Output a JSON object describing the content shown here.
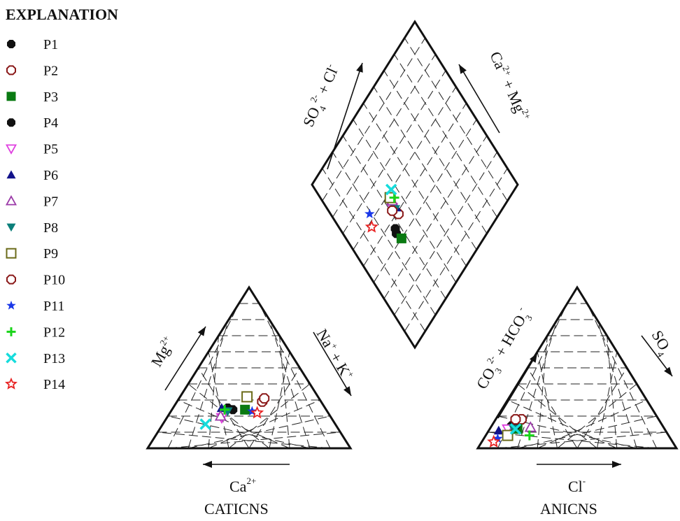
{
  "chart_data": {
    "type": "scatter",
    "chart_kind": "Piper trilinear diagram",
    "legend": {
      "title": "EXPLANATION",
      "placement": "top-left"
    },
    "series": [
      {
        "name": "P1",
        "marker": "octagon-filled",
        "color": "#111111"
      },
      {
        "name": "P2",
        "marker": "octagon-open",
        "color": "#8b1a1a"
      },
      {
        "name": "P3",
        "marker": "square-filled",
        "color": "#0a7a12"
      },
      {
        "name": "P4",
        "marker": "octagon-filled",
        "color": "#111111"
      },
      {
        "name": "P5",
        "marker": "triangle-down-open",
        "color": "#e040e0"
      },
      {
        "name": "P6",
        "marker": "triangle-up-filled",
        "color": "#12128a"
      },
      {
        "name": "P7",
        "marker": "triangle-up-open",
        "color": "#9b3aa8"
      },
      {
        "name": "P8",
        "marker": "triangle-down-filled",
        "color": "#0b7f7a"
      },
      {
        "name": "P9",
        "marker": "square-open",
        "color": "#6b6b1a"
      },
      {
        "name": "P10",
        "marker": "octagon-open",
        "color": "#8b1a1a"
      },
      {
        "name": "P11",
        "marker": "star-filled",
        "color": "#1a38e8"
      },
      {
        "name": "P12",
        "marker": "plus",
        "color": "#1ad41a"
      },
      {
        "name": "P13",
        "marker": "x",
        "color": "#16dcdc"
      },
      {
        "name": "P14",
        "marker": "star-open",
        "color": "#e82222"
      }
    ],
    "cation_triangle": {
      "label_ca": "Ca",
      "label_ca_sup": "2+",
      "label_mg": "Mg",
      "label_mg_sup": "2+",
      "label_na": "Na",
      "label_na_sup": "+",
      "label_k": "+ K",
      "label_k_sup": "+",
      "group_label": "CATICNS",
      "points_mg_na": [
        {
          "series": "P1",
          "mg": 24,
          "na": 30
        },
        {
          "series": "P2",
          "mg": 29,
          "na": 42
        },
        {
          "series": "P3",
          "mg": 24,
          "na": 36
        },
        {
          "series": "P4",
          "mg": 25,
          "na": 27
        },
        {
          "series": "P5",
          "mg": 19,
          "na": 27
        },
        {
          "series": "P6",
          "mg": 25,
          "na": 24
        },
        {
          "series": "P7",
          "mg": 20,
          "na": 26
        },
        {
          "series": "P8",
          "mg": 23,
          "na": 28
        },
        {
          "series": "P9",
          "mg": 32,
          "na": 33
        },
        {
          "series": "P10",
          "mg": 31,
          "na": 42
        },
        {
          "series": "P11",
          "mg": 23,
          "na": 40
        },
        {
          "series": "P12",
          "mg": 24,
          "na": 26
        },
        {
          "series": "P13",
          "mg": 15,
          "na": 21
        },
        {
          "series": "P14",
          "mg": 22,
          "na": 43
        }
      ]
    },
    "anion_triangle": {
      "label_cl": "Cl",
      "label_cl_sup": "-",
      "label_co3": "CO",
      "label_co3_sub": "3",
      "label_co3_sup": "2-",
      "label_hco3": "+ HCO",
      "label_hco3_sub": "3",
      "label_hco3_sup": "-",
      "label_so4": "SO",
      "label_so4_sub": "4",
      "group_label": "ANICNS",
      "points_so4_cl": [
        {
          "series": "P1",
          "so4": 14,
          "cl": 10
        },
        {
          "series": "P2",
          "so4": 18,
          "cl": 13
        },
        {
          "series": "P3",
          "so4": 12,
          "cl": 14
        },
        {
          "series": "P4",
          "so4": 14,
          "cl": 12
        },
        {
          "series": "P5",
          "so4": 12,
          "cl": 9
        },
        {
          "series": "P6",
          "so4": 11,
          "cl": 5
        },
        {
          "series": "P7",
          "so4": 13,
          "cl": 20
        },
        {
          "series": "P8",
          "so4": 12,
          "cl": 12
        },
        {
          "series": "P9",
          "so4": 8,
          "cl": 11
        },
        {
          "series": "P10",
          "so4": 18,
          "cl": 10
        },
        {
          "series": "P11",
          "so4": 6,
          "cl": 7
        },
        {
          "series": "P12",
          "so4": 8,
          "cl": 22
        },
        {
          "series": "P13",
          "so4": 12,
          "cl": 13
        },
        {
          "series": "P14",
          "so4": 4,
          "cl": 6
        }
      ]
    },
    "diamond": {
      "label_left": "SO",
      "label_left_sub": "4",
      "label_left_sup": "2-",
      "label_left_b": "+ Cl",
      "label_left_b_sup": "-",
      "label_right": "Ca",
      "label_right_sup": "2+",
      "label_right_b": "+ Mg",
      "label_right_b_sup": "2+",
      "points_so4cl_camg": [
        {
          "series": "P1",
          "u": 26,
          "v": 44
        },
        {
          "series": "P2",
          "u": 33,
          "v": 49
        },
        {
          "series": "P3",
          "u": 27,
          "v": 40
        },
        {
          "series": "P4",
          "u": 27,
          "v": 46
        },
        {
          "series": "P5",
          "u": 32,
          "v": 54
        },
        {
          "series": "P6",
          "u": 34,
          "v": 52
        },
        {
          "series": "P7",
          "u": 34,
          "v": 56
        },
        {
          "series": "P8",
          "u": 33,
          "v": 52
        },
        {
          "series": "P9",
          "u": 34,
          "v": 58
        },
        {
          "series": "P10",
          "u": 31,
          "v": 53
        },
        {
          "series": "P11",
          "u": 19,
          "v": 63
        },
        {
          "series": "P12",
          "u": 36,
          "v": 56
        },
        {
          "series": "P13",
          "u": 37,
          "v": 60
        },
        {
          "series": "P14",
          "u": 16,
          "v": 58
        }
      ]
    }
  }
}
